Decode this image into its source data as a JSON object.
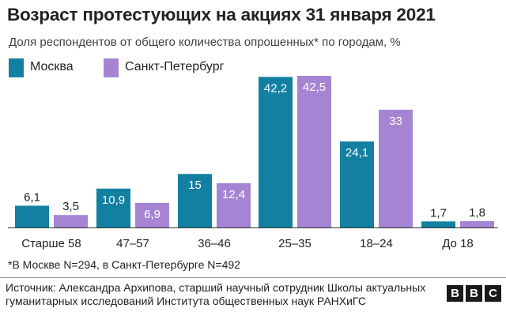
{
  "title": "Возраст протестующих на акциях 31 января 2021",
  "subtitle": "Доля респондентов от общего количества опрошенных* по городам, %",
  "legend": [
    {
      "label": "Москва",
      "color": "#1380a1"
    },
    {
      "label": "Санкт-Петербург",
      "color": "#a585d3"
    }
  ],
  "chart_data": {
    "type": "bar",
    "title": "Возраст протестующих на акциях 31 января 2021",
    "subtitle": "Доля респондентов от общего количества опрошенных* по городам, %",
    "categories": [
      "Старше 58",
      "47–57",
      "36–46",
      "25–35",
      "18–24",
      "До 18"
    ],
    "series": [
      {
        "name": "Москва",
        "color": "#1380a1",
        "values": [
          6.1,
          10.9,
          15,
          42.2,
          24.1,
          1.7
        ],
        "labels": [
          "6,1",
          "10,9",
          "15",
          "42,2",
          "24,1",
          "1,7"
        ]
      },
      {
        "name": "Санкт-Петербург",
        "color": "#a585d3",
        "values": [
          3.5,
          6.9,
          12.4,
          42.5,
          33,
          1.8
        ],
        "labels": [
          "3,5",
          "6,9",
          "12,4",
          "42,5",
          "33",
          "1,8"
        ]
      }
    ],
    "xlabel": "",
    "ylabel": "",
    "ylim": [
      0,
      42.5
    ],
    "legend_position": "top-left",
    "grid": false
  },
  "footnote": "*В Москве N=294, в Санкт-Петербурге N=492",
  "source": "Источник: Александра Архипова, старший научный сотрудник Школы актуальных гуманитарных исследований Института общественных наук РАНХиГС",
  "logo": {
    "letters": [
      "B",
      "B",
      "C"
    ]
  }
}
